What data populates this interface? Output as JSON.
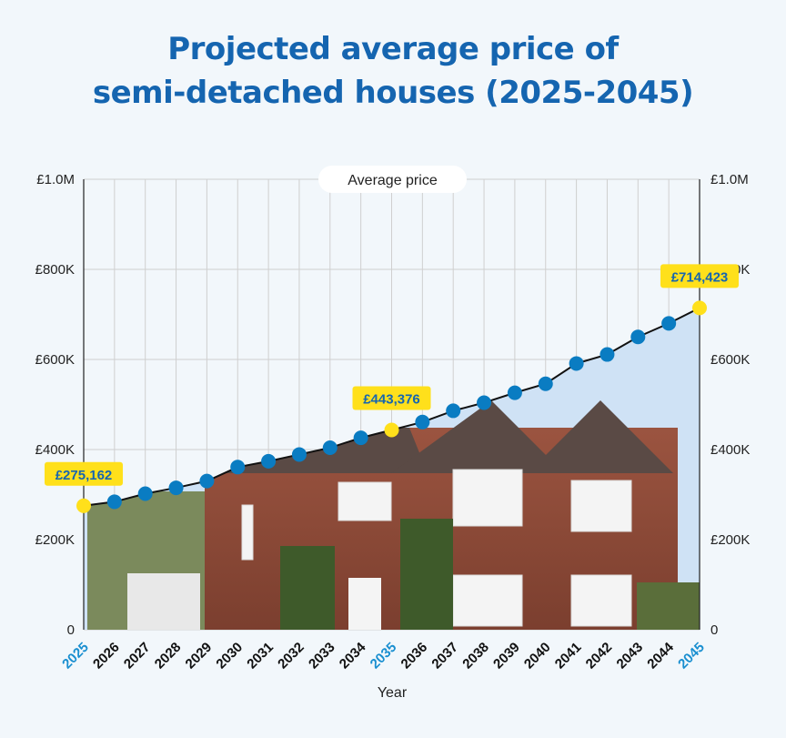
{
  "chart_data": {
    "type": "line",
    "title_line1": "Projected average price of",
    "title_line2": "semi-detached houses (2025-2045)",
    "legend": "Average price",
    "xlabel": "Year",
    "ylabel": "",
    "ylim": [
      0,
      1000000
    ],
    "yticks": [
      "0",
      "£200K",
      "£400K",
      "£600K",
      "£800K",
      "£1.0M"
    ],
    "yticks_right": [
      "0",
      "£200K",
      "£400K",
      "£600K",
      "£800K",
      "£1.0M"
    ],
    "grid": true,
    "x": [
      "2025",
      "2026",
      "2027",
      "2028",
      "2029",
      "2030",
      "2031",
      "2032",
      "2033",
      "2034",
      "2035",
      "2036",
      "2037",
      "2038",
      "2039",
      "2040",
      "2041",
      "2042",
      "2043",
      "2044",
      "2045"
    ],
    "series": [
      {
        "name": "Average price",
        "values": [
          275162,
          284000,
          302000,
          315000,
          330000,
          361000,
          374000,
          389000,
          404000,
          426000,
          443376,
          461000,
          486000,
          504000,
          526000,
          546000,
          591000,
          611000,
          650000,
          680000,
          714423
        ]
      }
    ],
    "highlighted": [
      {
        "x": "2025",
        "label": "£275,162"
      },
      {
        "x": "2035",
        "label": "£443,376"
      },
      {
        "x": "2045",
        "label": "£714,423"
      }
    ],
    "colors": {
      "title": "#1565b0",
      "point": "#0a7cc2",
      "highlight_point": "#ffe01b",
      "highlight_label_bg": "#ffe01b",
      "highlight_label_text": "#1565b0",
      "highlight_year": "#1a8fd0",
      "line": "#111111",
      "grid": "#cfcfcf",
      "photo_fill": "#8a4a36",
      "roof": "#5a4a45",
      "sky": "#cfe2f5"
    }
  }
}
